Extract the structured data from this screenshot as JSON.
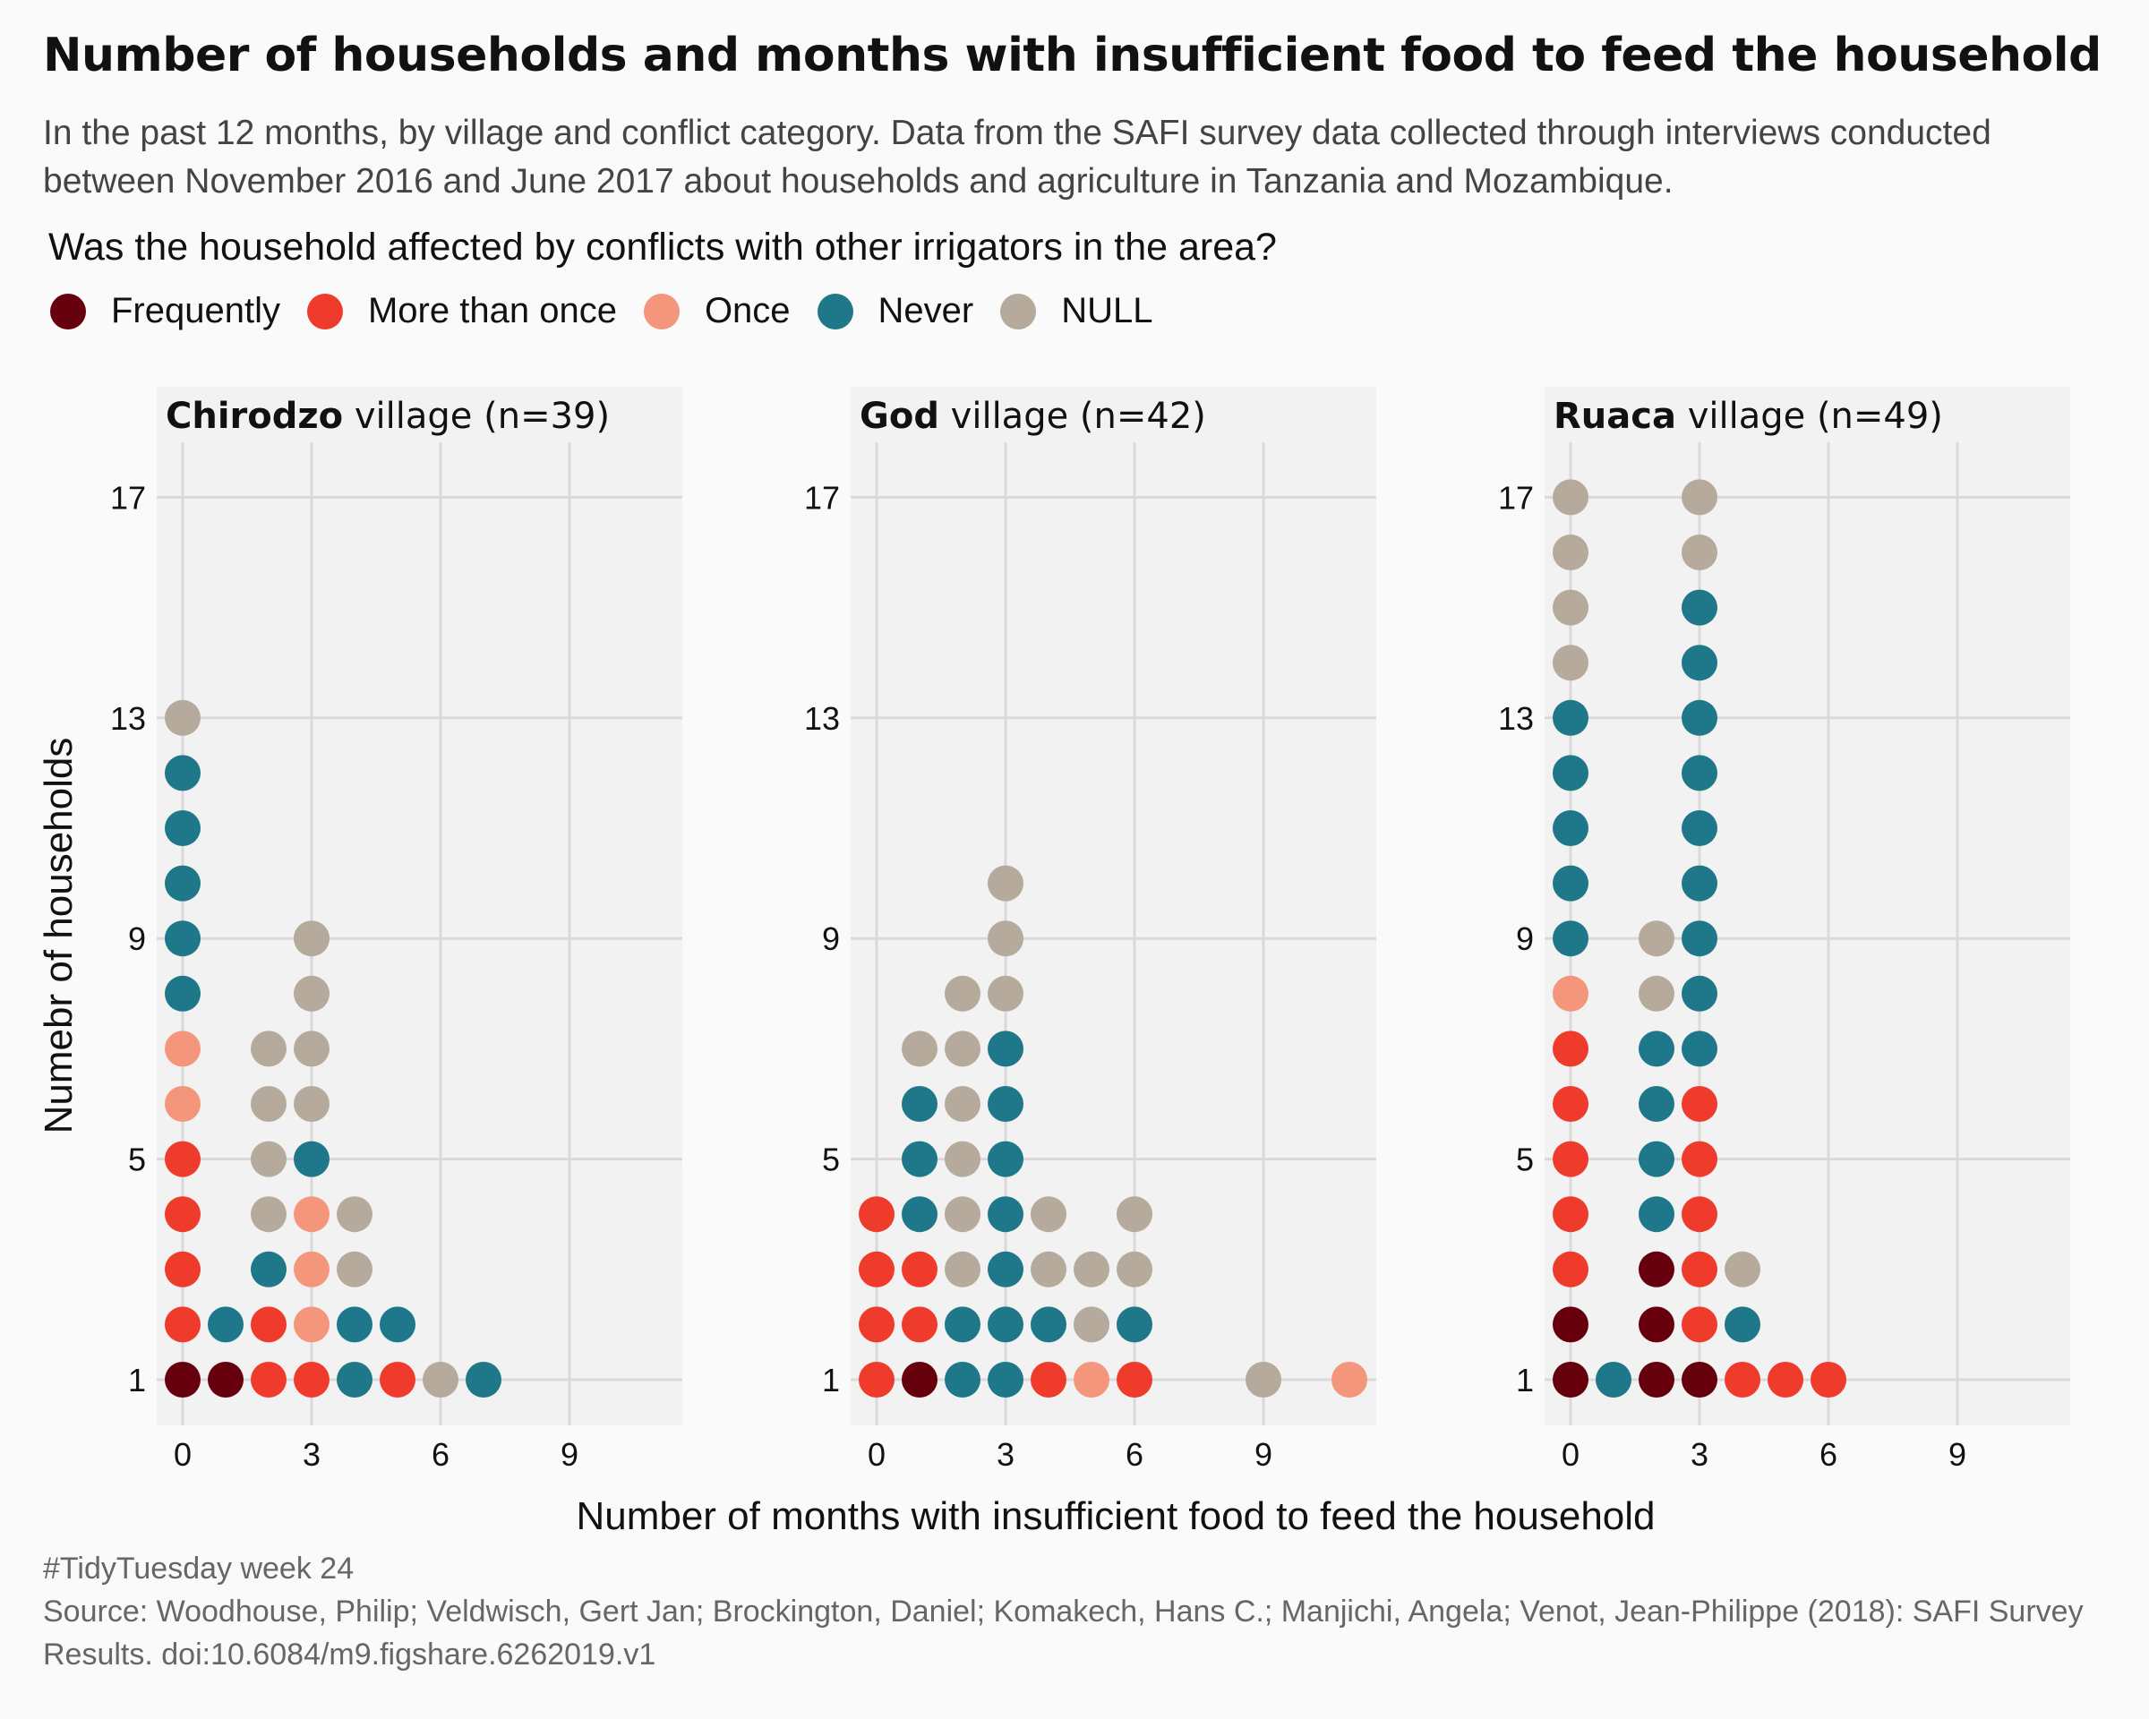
{
  "title": "Number of households and months with insufficient food to feed the household",
  "subtitle": "In the past 12 months, by village and conflict category. Data from the SAFI survey data collected through interviews conducted between November 2016 and June 2017 about households and agriculture in Tanzania and Mozambique.",
  "legend": {
    "title": "Was the household affected by conflicts with other irrigators in the area?",
    "items": [
      {
        "label": "Frequently",
        "color": "#67000d"
      },
      {
        "label": "More than once",
        "color": "#ef3b2c"
      },
      {
        "label": "Once",
        "color": "#f4967c"
      },
      {
        "label": "Never",
        "color": "#1f788a"
      },
      {
        "label": "NULL",
        "color": "#b5aa9c"
      }
    ]
  },
  "caption": {
    "line1": "#TidyTuesday week 24",
    "line2": "Source: Woodhouse, Philip; Veldwisch, Gert Jan; Brockington, Daniel; Komakech, Hans C.; Manjichi, Angela; Venot, Jean-Philippe (2018): SAFI Survey Results. doi:10.6084/m9.figshare.6262019.v1"
  },
  "chart_data": {
    "type": "scatter",
    "xlabel": "Number of months with insufficient food to feed the household",
    "ylabel": "Numebr of households",
    "xticks": [
      0,
      3,
      6,
      9
    ],
    "yticks": [
      1,
      5,
      9,
      13,
      17
    ],
    "xlim": [
      -0.6,
      11.6
    ],
    "ylim": [
      0.2,
      17.9
    ],
    "grid": true,
    "panels": [
      {
        "name": "Chirodzo",
        "suffix": "village (n=39)",
        "columns": [
          {
            "x": 0,
            "stack": [
              "Frequently",
              "More than once",
              "More than once",
              "More than once",
              "More than once",
              "Once",
              "Once",
              "Never",
              "Never",
              "Never",
              "Never",
              "Never",
              "NULL"
            ]
          },
          {
            "x": 1,
            "stack": [
              "Frequently",
              "Never"
            ]
          },
          {
            "x": 2,
            "stack": [
              "More than once",
              "More than once",
              "Never",
              "NULL",
              "NULL",
              "NULL",
              "NULL"
            ]
          },
          {
            "x": 3,
            "stack": [
              "More than once",
              "Once",
              "Once",
              "Once",
              "Never",
              "NULL",
              "NULL",
              "NULL",
              "NULL"
            ]
          },
          {
            "x": 4,
            "stack": [
              "Never",
              "Never",
              "NULL",
              "NULL"
            ]
          },
          {
            "x": 5,
            "stack": [
              "More than once",
              "Never"
            ]
          },
          {
            "x": 6,
            "stack": [
              "NULL"
            ]
          },
          {
            "x": 7,
            "stack": [
              "Never"
            ]
          }
        ]
      },
      {
        "name": "God",
        "suffix": "village (n=42)",
        "columns": [
          {
            "x": 0,
            "stack": [
              "More than once",
              "More than once",
              "More than once",
              "More than once"
            ]
          },
          {
            "x": 1,
            "stack": [
              "Frequently",
              "More than once",
              "More than once",
              "Never",
              "Never",
              "Never",
              "NULL"
            ]
          },
          {
            "x": 2,
            "stack": [
              "Never",
              "Never",
              "NULL",
              "NULL",
              "NULL",
              "NULL",
              "NULL",
              "NULL"
            ]
          },
          {
            "x": 3,
            "stack": [
              "Never",
              "Never",
              "Never",
              "Never",
              "Never",
              "Never",
              "Never",
              "NULL",
              "NULL",
              "NULL"
            ]
          },
          {
            "x": 4,
            "stack": [
              "More than once",
              "Never",
              "NULL",
              "NULL"
            ]
          },
          {
            "x": 5,
            "stack": [
              "Once",
              "NULL",
              "NULL"
            ]
          },
          {
            "x": 6,
            "stack": [
              "More than once",
              "Never",
              "NULL",
              "NULL"
            ]
          },
          {
            "x": 9,
            "stack": [
              "NULL"
            ]
          },
          {
            "x": 11,
            "stack": [
              "Once"
            ]
          }
        ]
      },
      {
        "name": "Ruaca",
        "suffix": "village (n=49)",
        "columns": [
          {
            "x": 0,
            "stack": [
              "Frequently",
              "Frequently",
              "More than once",
              "More than once",
              "More than once",
              "More than once",
              "More than once",
              "Once",
              "Never",
              "Never",
              "Never",
              "Never",
              "Never",
              "NULL",
              "NULL",
              "NULL",
              "NULL"
            ]
          },
          {
            "x": 1,
            "stack": [
              "Never"
            ]
          },
          {
            "x": 2,
            "stack": [
              "Frequently",
              "Frequently",
              "Frequently",
              "Never",
              "Never",
              "Never",
              "Never",
              "NULL",
              "NULL"
            ]
          },
          {
            "x": 3,
            "stack": [
              "Frequently",
              "More than once",
              "More than once",
              "More than once",
              "More than once",
              "More than once",
              "Never",
              "Never",
              "Never",
              "Never",
              "Never",
              "Never",
              "Never",
              "Never",
              "Never",
              "NULL",
              "NULL"
            ]
          },
          {
            "x": 4,
            "stack": [
              "More than once",
              "Never",
              "NULL"
            ]
          },
          {
            "x": 5,
            "stack": [
              "More than once"
            ]
          },
          {
            "x": 6,
            "stack": [
              "More than once"
            ]
          }
        ]
      }
    ]
  }
}
